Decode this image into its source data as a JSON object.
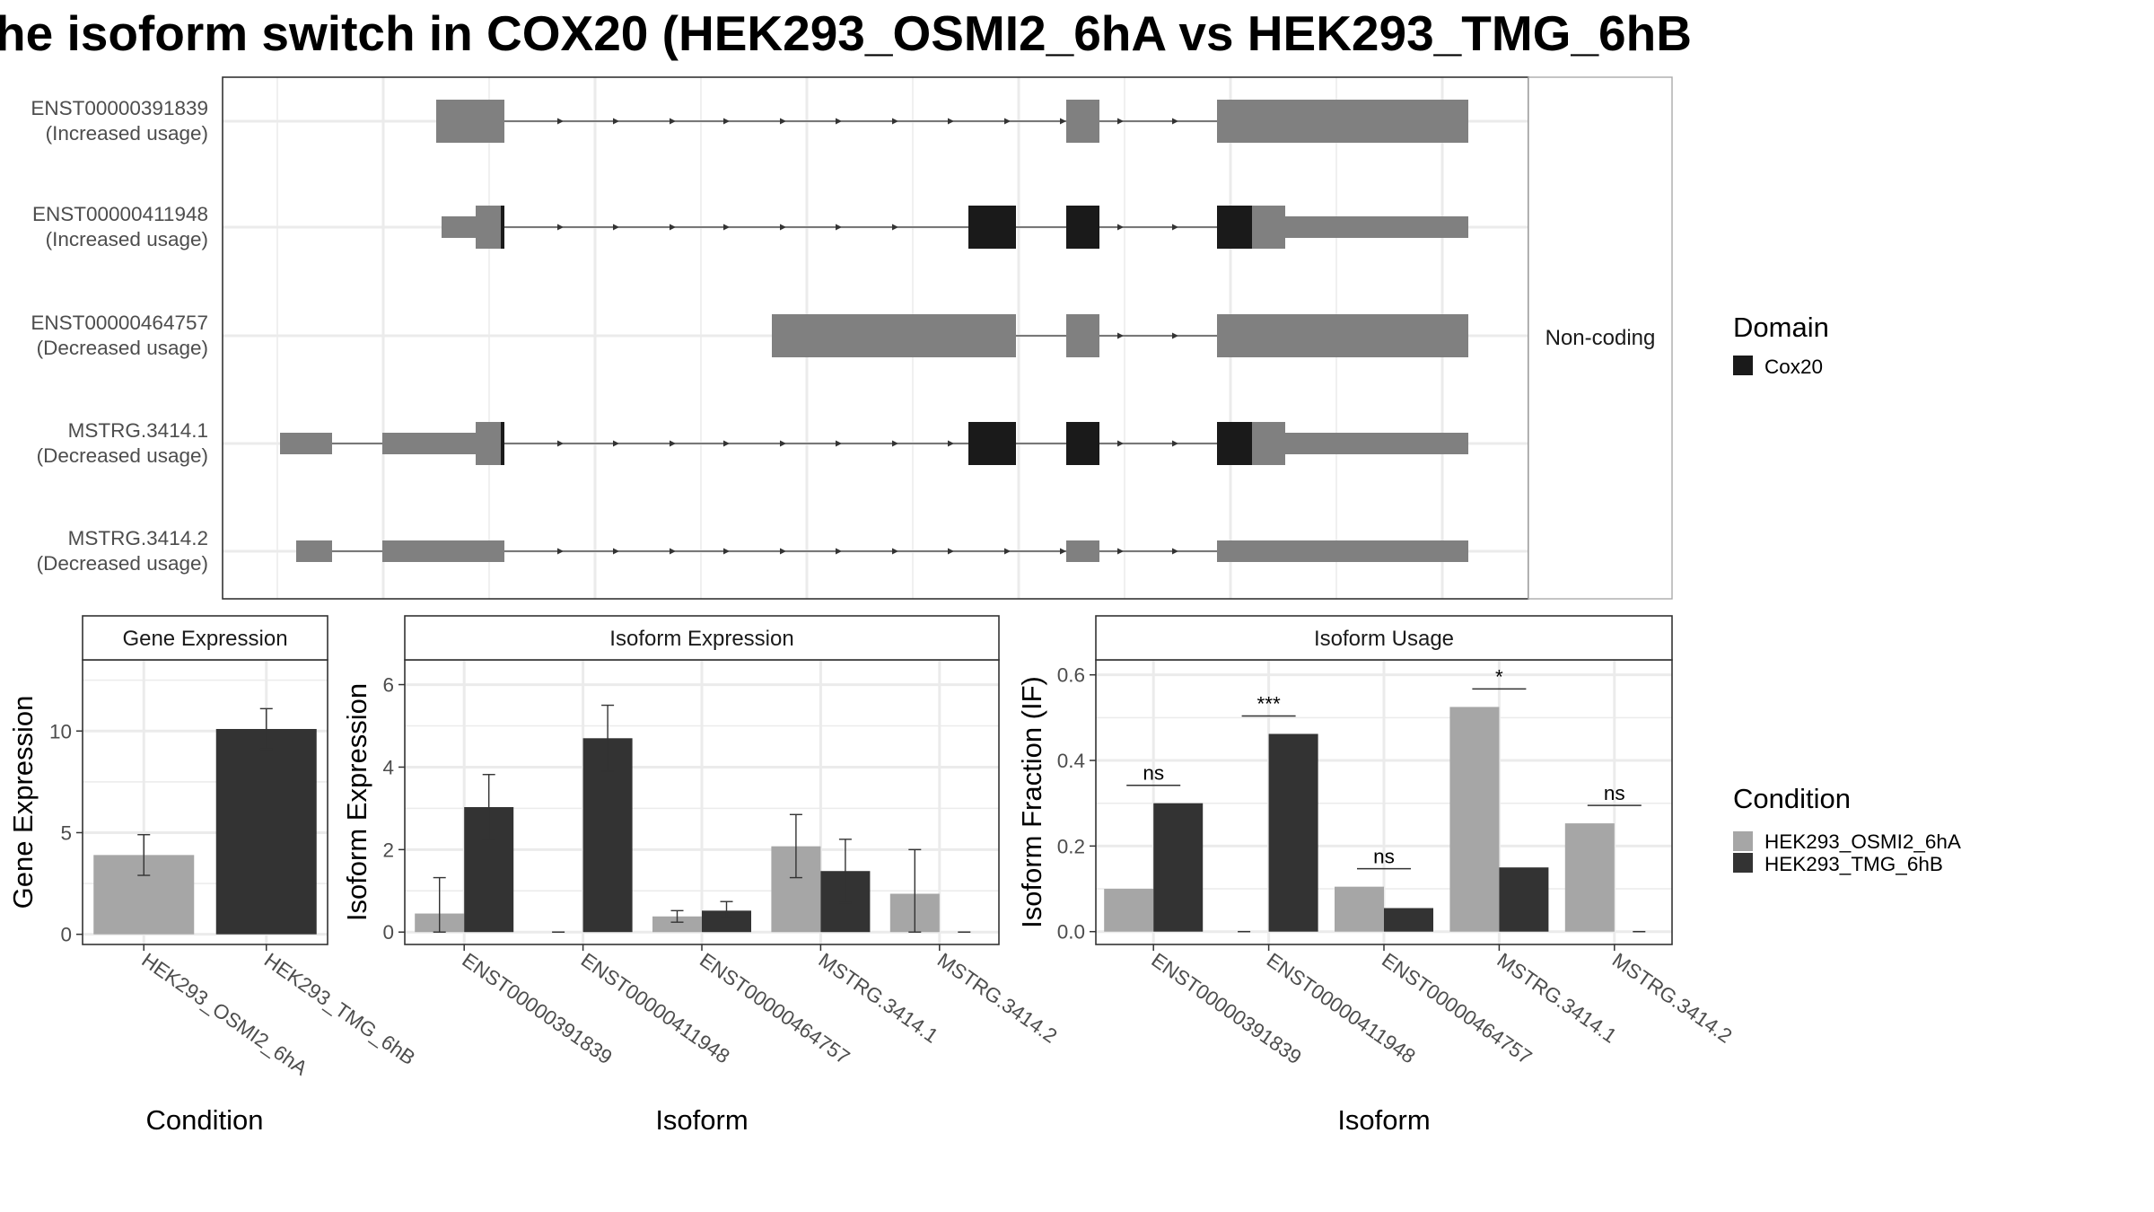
{
  "title": "he isoform switch in COX20 (HEK293_OSMI2_6hA vs HEK293_TMG_6hB",
  "structure_panel": {
    "facet_label": "Non-coding",
    "rows": [
      {
        "id": "ENST00000391839",
        "usage": "(Increased usage)"
      },
      {
        "id": "ENST00000411948",
        "usage": "(Increased usage)"
      },
      {
        "id": "ENST00000464757",
        "usage": "(Decreased usage)"
      },
      {
        "id": "MSTRG.3414.1",
        "usage": "(Decreased usage)"
      },
      {
        "id": "MSTRG.3414.2",
        "usage": "(Decreased usage)"
      }
    ]
  },
  "legend_domain": {
    "title": "Domain",
    "items": [
      {
        "label": "Cox20",
        "color": "#1a1a1a"
      }
    ]
  },
  "legend_condition": {
    "title": "Condition",
    "items": [
      {
        "label": "HEK293_OSMI2_6hA",
        "color": "#a6a6a6"
      },
      {
        "label": "HEK293_TMG_6hB",
        "color": "#333333"
      }
    ]
  },
  "chart_data": [
    {
      "type": "bar",
      "title": "Gene Expression",
      "xlabel": "Condition",
      "ylabel": "Gene Expression",
      "categories": [
        "HEK293_OSMI2_6hA",
        "HEK293_TMG_6hB"
      ],
      "values": [
        3.9,
        10.1
      ],
      "errors": [
        [
          2.9,
          4.9
        ],
        [
          9.1,
          11.1
        ]
      ],
      "ylim": [
        -0.5,
        13.5
      ],
      "yticks": [
        "0",
        "5",
        "10"
      ]
    },
    {
      "type": "bar",
      "title": "Isoform Expression",
      "xlabel": "Isoform",
      "ylabel": "Isoform Expression",
      "categories": [
        "ENST00000391839",
        "ENST00000411948",
        "ENST00000464757",
        "MSTRG.3414.1",
        "MSTRG.3414.2"
      ],
      "series": [
        {
          "name": "HEK293_OSMI2_6hA",
          "values": [
            0.45,
            0.0,
            0.38,
            2.08,
            0.93
          ],
          "errors": [
            [
              0.0,
              1.32
            ],
            [
              0.0,
              0.0
            ],
            [
              0.24,
              0.52
            ],
            [
              1.32,
              2.85
            ],
            [
              0.0,
              2.0
            ]
          ]
        },
        {
          "name": "HEK293_TMG_6hB",
          "values": [
            3.03,
            4.7,
            0.52,
            1.48,
            0.0
          ],
          "errors": [
            [
              2.25,
              3.82
            ],
            [
              3.9,
              5.5
            ],
            [
              0.33,
              0.74
            ],
            [
              0.71,
              2.25
            ],
            [
              0.0,
              0.0
            ]
          ]
        }
      ],
      "ylim": [
        -0.3,
        6.6
      ],
      "yticks": [
        "0",
        "2",
        "4",
        "6"
      ]
    },
    {
      "type": "bar",
      "title": "Isoform Usage",
      "xlabel": "Isoform",
      "ylabel": "Isoform Fraction (IF)",
      "categories": [
        "ENST00000391839",
        "ENST00000411948",
        "ENST00000464757",
        "MSTRG.3414.1",
        "MSTRG.3414.2"
      ],
      "series": [
        {
          "name": "HEK293_OSMI2_6hA",
          "values": [
            0.1,
            0.0,
            0.105,
            0.525,
            0.253
          ]
        },
        {
          "name": "HEK293_TMG_6hB",
          "values": [
            0.3,
            0.462,
            0.055,
            0.15,
            0.0
          ]
        }
      ],
      "significance": [
        "ns",
        "***",
        "ns",
        "*",
        "ns"
      ],
      "ylim": [
        -0.03,
        0.635
      ],
      "yticks": [
        "0.0",
        "0.2",
        "0.4",
        "0.6"
      ]
    }
  ]
}
